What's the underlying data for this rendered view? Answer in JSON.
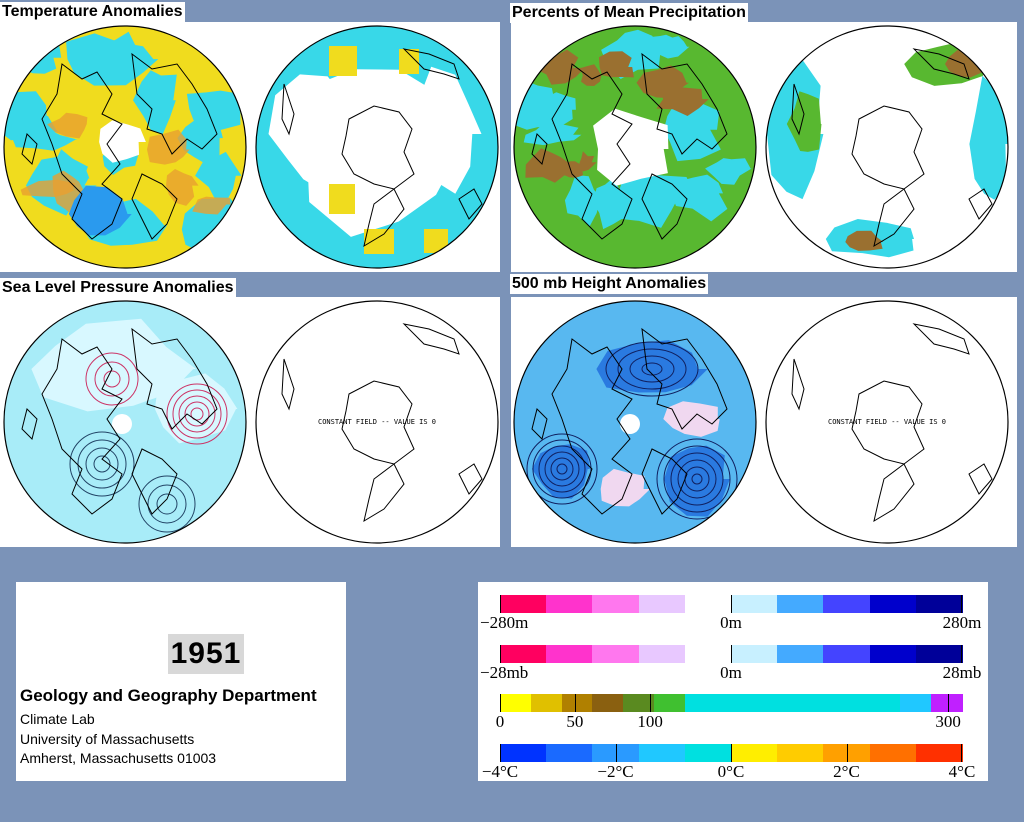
{
  "panels": [
    {
      "title": "Temperature Anomalies",
      "left_field": "temperature",
      "right_field": "temperature-sparse"
    },
    {
      "title": "Percents of Mean Precipitation",
      "left_field": "precipitation",
      "right_field": "precipitation-sparse"
    },
    {
      "title": "Sea Level Pressure Anomalies",
      "left_field": "slp",
      "right_field": "constant"
    },
    {
      "title": "500 mb Height Anomalies",
      "left_field": "height",
      "right_field": "constant"
    }
  ],
  "constant_field_text": "CONSTANT FIELD -- VALUE IS 0",
  "info": {
    "year": "1951",
    "department": "Geology and Geography Department",
    "lines": [
      "Climate Lab",
      "University of Massachusetts",
      "Amherst, Massachusetts 01003"
    ]
  },
  "legend": {
    "bars": [
      {
        "name": "height-scale",
        "colors": [
          "#ff0060",
          "#ff33cc",
          "#ff77ee",
          "#e8c8ff",
          "#ffffff",
          "#c8f0ff",
          "#44aaff",
          "#4444ff",
          "#0000cc",
          "#000099"
        ],
        "ticks": [
          {
            "label": "−280m",
            "pos": 0
          },
          {
            "label": "0m",
            "pos": 0.5
          },
          {
            "label": "280m",
            "pos": 1
          }
        ]
      },
      {
        "name": "pressure-scale",
        "colors": [
          "#ff0060",
          "#ff33cc",
          "#ff77ee",
          "#e8c8ff",
          "#ffffff",
          "#c8f0ff",
          "#44aaff",
          "#4444ff",
          "#0000cc",
          "#000099"
        ],
        "ticks": [
          {
            "label": "−28mb",
            "pos": 0
          },
          {
            "label": "0m",
            "pos": 0.5
          },
          {
            "label": "28mb",
            "pos": 1
          }
        ]
      },
      {
        "name": "precip-scale",
        "colors": [
          "#ffff00",
          "#e0c000",
          "#b08000",
          "#8a6010",
          "#5a8a20",
          "#40c030",
          "#00e0e0",
          "#00e0e0",
          "#00e0e0",
          "#00e0e0",
          "#00e0e0",
          "#00e0e0",
          "#00e0e0",
          "#20c8ff",
          "#c020ff"
        ],
        "ticks": [
          {
            "label": "0",
            "pos": 0
          },
          {
            "label": "50",
            "pos": 0.162
          },
          {
            "label": "100",
            "pos": 0.325
          },
          {
            "label": "300",
            "pos": 0.97
          }
        ]
      },
      {
        "name": "temp-scale",
        "colors": [
          "#0033ff",
          "#1a6aff",
          "#2a9aff",
          "#20c8ff",
          "#00e0e0",
          "#ffee00",
          "#ffcc00",
          "#ffa000",
          "#ff7000",
          "#ff3000"
        ],
        "ticks": [
          {
            "label": "−4°C",
            "pos": 0
          },
          {
            "label": "−2°C",
            "pos": 0.25
          },
          {
            "label": "0°C",
            "pos": 0.5
          },
          {
            "label": "2°C",
            "pos": 0.75
          },
          {
            "label": "4°C",
            "pos": 1
          }
        ]
      }
    ]
  },
  "colors": {
    "background": "#7b93b8",
    "warm": "#f0dc1e",
    "warm_dark": "#e8a030",
    "cool": "#38d8e8",
    "cool_dark": "#2a9aee",
    "wet": "#38d8e8",
    "green": "#58b830",
    "brown": "#9a7030",
    "slp_fill": "#a8ecf8",
    "slp_light": "#d8f8ff",
    "height_fill": "#58b8f0",
    "height_dark": "#2a7ae0"
  }
}
